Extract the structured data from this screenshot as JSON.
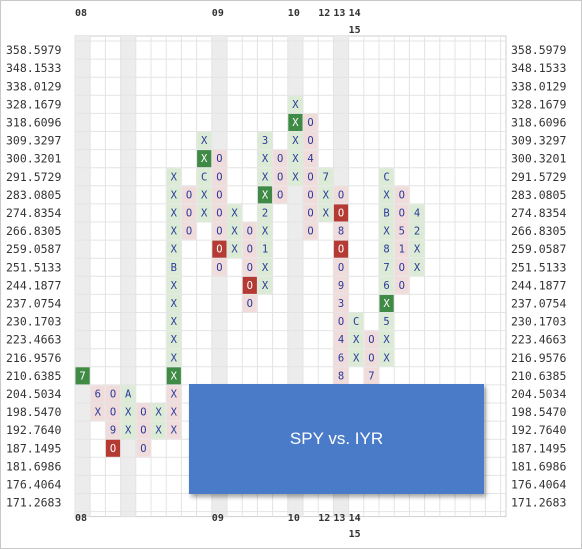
{
  "chart_data": {
    "type": "point-and-figure",
    "overlay_title": "SPY vs. IYR",
    "price_levels": [
      "358.5979",
      "348.1533",
      "338.0129",
      "328.1679",
      "318.6096",
      "309.3297",
      "300.3201",
      "291.5729",
      "283.0805",
      "274.8354",
      "266.8305",
      "259.0587",
      "251.5133",
      "244.1877",
      "237.0754",
      "230.1703",
      "223.4663",
      "216.9576",
      "210.6385",
      "204.5034",
      "198.5470",
      "192.7640",
      "187.1495",
      "181.6986",
      "176.4064",
      "171.2683"
    ],
    "year_markers": [
      {
        "column": 0,
        "label": "08"
      },
      {
        "column": 9,
        "label": "09"
      },
      {
        "column": 14,
        "label": "10"
      },
      {
        "column": 16,
        "label": "12"
      },
      {
        "column": 17,
        "label": "13"
      },
      {
        "column": 18,
        "label": "14"
      },
      {
        "column": 18,
        "label": "15",
        "row": 2
      }
    ],
    "shaded_columns": [
      0,
      3,
      9,
      14,
      17
    ],
    "columns": [
      {
        "type": "X",
        "cells": [
          {
            "level": "210.6385",
            "char": "7",
            "style": "month-dark"
          }
        ]
      },
      {
        "type": "O",
        "cells": [
          {
            "level": "204.5034",
            "char": "6",
            "style": "month-plain"
          },
          {
            "level": "198.5470",
            "char": "X",
            "style": "plain"
          }
        ]
      },
      {
        "type": "O",
        "cells": [
          {
            "level": "204.5034",
            "char": "O"
          },
          {
            "level": "198.5470",
            "char": "O"
          },
          {
            "level": "192.7640",
            "char": "9",
            "style": "month-plain"
          },
          {
            "level": "187.1495",
            "char": "O",
            "style": "dark"
          }
        ]
      },
      {
        "type": "X",
        "cells": [
          {
            "level": "204.5034",
            "char": "A",
            "style": "month-plain"
          },
          {
            "level": "198.5470",
            "char": "X"
          },
          {
            "level": "192.7640",
            "char": "X"
          }
        ]
      },
      {
        "type": "O",
        "cells": [
          {
            "level": "198.5470",
            "char": "O"
          },
          {
            "level": "192.7640",
            "char": "O"
          },
          {
            "level": "187.1495",
            "char": "O"
          }
        ]
      },
      {
        "type": "X",
        "cells": [
          {
            "level": "198.5470",
            "char": "X"
          },
          {
            "level": "192.7640",
            "char": "X"
          }
        ]
      },
      {
        "type": "X",
        "cells": [
          {
            "level": "291.5729",
            "char": "X"
          },
          {
            "level": "283.0805",
            "char": "X"
          },
          {
            "level": "274.8354",
            "char": "X"
          },
          {
            "level": "266.8305",
            "char": "X"
          },
          {
            "level": "259.0587",
            "char": "X"
          },
          {
            "level": "251.5133",
            "char": "B",
            "style": "month-plain"
          },
          {
            "level": "244.1877",
            "char": "X"
          },
          {
            "level": "237.0754",
            "char": "X"
          },
          {
            "level": "230.1703",
            "char": "X"
          },
          {
            "level": "223.4663",
            "char": "X"
          },
          {
            "level": "216.9576",
            "char": "X"
          },
          {
            "level": "210.6385",
            "char": "X",
            "style": "dark"
          },
          {
            "level": "204.5034",
            "char": "X",
            "style": "red"
          },
          {
            "level": "198.5470",
            "char": "X",
            "style": "red"
          },
          {
            "level": "192.7640",
            "char": "X",
            "style": "red"
          }
        ]
      },
      {
        "type": "O",
        "cells": [
          {
            "level": "283.0805",
            "char": "O"
          },
          {
            "level": "274.8354",
            "char": "O"
          },
          {
            "level": "266.8305",
            "char": "O"
          }
        ]
      },
      {
        "type": "X",
        "cells": [
          {
            "level": "309.3297",
            "char": "X"
          },
          {
            "level": "300.3201",
            "char": "X",
            "style": "dark"
          },
          {
            "level": "291.5729",
            "char": "C",
            "style": "month-plain"
          },
          {
            "level": "283.0805",
            "char": "X"
          },
          {
            "level": "274.8354",
            "char": "X"
          }
        ]
      },
      {
        "type": "O",
        "cells": [
          {
            "level": "300.3201",
            "char": "O"
          },
          {
            "level": "291.5729",
            "char": "O"
          },
          {
            "level": "283.0805",
            "char": "O"
          },
          {
            "level": "274.8354",
            "char": "O"
          },
          {
            "level": "266.8305",
            "char": "O"
          },
          {
            "level": "259.0587",
            "char": "O",
            "style": "dark"
          },
          {
            "level": "251.5133",
            "char": "O"
          }
        ]
      },
      {
        "type": "X",
        "cells": [
          {
            "level": "274.8354",
            "char": "X"
          },
          {
            "level": "266.8305",
            "char": "X"
          },
          {
            "level": "259.0587",
            "char": "X"
          }
        ]
      },
      {
        "type": "O",
        "cells": [
          {
            "level": "266.8305",
            "char": "O"
          },
          {
            "level": "259.0587",
            "char": "O"
          },
          {
            "level": "251.5133",
            "char": "O"
          },
          {
            "level": "244.1877",
            "char": "O",
            "style": "dark"
          },
          {
            "level": "237.0754",
            "char": "O"
          }
        ]
      },
      {
        "type": "X",
        "cells": [
          {
            "level": "309.3297",
            "char": "3",
            "style": "month-plain"
          },
          {
            "level": "300.3201",
            "char": "X"
          },
          {
            "level": "291.5729",
            "char": "X"
          },
          {
            "level": "283.0805",
            "char": "X",
            "style": "dark"
          },
          {
            "level": "274.8354",
            "char": "2",
            "style": "month-plain"
          },
          {
            "level": "266.8305",
            "char": "X"
          },
          {
            "level": "259.0587",
            "char": "1",
            "style": "month-plain"
          },
          {
            "level": "251.5133",
            "char": "X"
          },
          {
            "level": "244.1877",
            "char": "X"
          }
        ]
      },
      {
        "type": "O",
        "cells": [
          {
            "level": "300.3201",
            "char": "O"
          },
          {
            "level": "291.5729",
            "char": "O"
          },
          {
            "level": "283.0805",
            "char": "O"
          }
        ]
      },
      {
        "type": "X",
        "cells": [
          {
            "level": "328.1679",
            "char": "X"
          },
          {
            "level": "318.6096",
            "char": "X",
            "style": "dark"
          },
          {
            "level": "309.3297",
            "char": "X"
          },
          {
            "level": "300.3201",
            "char": "X"
          },
          {
            "level": "291.5729",
            "char": "X"
          }
        ]
      },
      {
        "type": "O",
        "cells": [
          {
            "level": "318.6096",
            "char": "O"
          },
          {
            "level": "309.3297",
            "char": "O"
          },
          {
            "level": "300.3201",
            "char": "4",
            "style": "month-plain"
          },
          {
            "level": "291.5729",
            "char": "O"
          },
          {
            "level": "283.0805",
            "char": "O"
          },
          {
            "level": "274.8354",
            "char": "O"
          },
          {
            "level": "266.8305",
            "char": "O"
          }
        ]
      },
      {
        "type": "X",
        "cells": [
          {
            "level": "291.5729",
            "char": "7",
            "style": "month-plain"
          },
          {
            "level": "283.0805",
            "char": "X"
          },
          {
            "level": "274.8354",
            "char": "X"
          }
        ]
      },
      {
        "type": "O",
        "cells": [
          {
            "level": "283.0805",
            "char": "O"
          },
          {
            "level": "274.8354",
            "char": "O",
            "style": "dark"
          },
          {
            "level": "266.8305",
            "char": "8",
            "style": "month-plain"
          },
          {
            "level": "259.0587",
            "char": "O",
            "style": "dark"
          },
          {
            "level": "251.5133",
            "char": "O"
          },
          {
            "level": "244.1877",
            "char": "9",
            "style": "month-plain"
          },
          {
            "level": "237.0754",
            "char": "3",
            "style": "month-plain"
          },
          {
            "level": "230.1703",
            "char": "O"
          },
          {
            "level": "223.4663",
            "char": "4",
            "style": "month-plain"
          },
          {
            "level": "216.9576",
            "char": "6",
            "style": "month-plain"
          },
          {
            "level": "210.6385",
            "char": "8",
            "style": "month-plain"
          }
        ]
      },
      {
        "type": "X",
        "cells": [
          {
            "level": "230.1703",
            "char": "C",
            "style": "month-plain"
          },
          {
            "level": "223.4663",
            "char": "X"
          },
          {
            "level": "216.9576",
            "char": "X"
          }
        ]
      },
      {
        "type": "O",
        "cells": [
          {
            "level": "223.4663",
            "char": "O"
          },
          {
            "level": "216.9576",
            "char": "O"
          },
          {
            "level": "210.6385",
            "char": "7",
            "style": "month-plain"
          }
        ]
      },
      {
        "type": "X",
        "cells": [
          {
            "level": "291.5729",
            "char": "C",
            "style": "month-plain"
          },
          {
            "level": "283.0805",
            "char": "X"
          },
          {
            "level": "274.8354",
            "char": "B",
            "style": "month-plain"
          },
          {
            "level": "266.8305",
            "char": "X"
          },
          {
            "level": "259.0587",
            "char": "8",
            "style": "month-plain"
          },
          {
            "level": "251.5133",
            "char": "7",
            "style": "month-plain"
          },
          {
            "level": "244.1877",
            "char": "6",
            "style": "month-plain"
          },
          {
            "level": "237.0754",
            "char": "X",
            "style": "dark"
          },
          {
            "level": "230.1703",
            "char": "5",
            "style": "month-plain"
          },
          {
            "level": "223.4663",
            "char": "X"
          },
          {
            "level": "216.9576",
            "char": "X"
          }
        ]
      },
      {
        "type": "O",
        "cells": [
          {
            "level": "283.0805",
            "char": "O"
          },
          {
            "level": "274.8354",
            "char": "O"
          },
          {
            "level": "266.8305",
            "char": "5",
            "style": "month-plain"
          },
          {
            "level": "259.0587",
            "char": "1",
            "style": "month-plain"
          },
          {
            "level": "251.5133",
            "char": "O"
          },
          {
            "level": "244.1877",
            "char": "O"
          }
        ]
      },
      {
        "type": "X",
        "cells": [
          {
            "level": "274.8354",
            "char": "4",
            "style": "month-plain"
          },
          {
            "level": "266.8305",
            "char": "2",
            "style": "month-plain"
          },
          {
            "level": "259.0587",
            "char": "X"
          },
          {
            "level": "251.5133",
            "char": "X"
          }
        ]
      }
    ]
  }
}
